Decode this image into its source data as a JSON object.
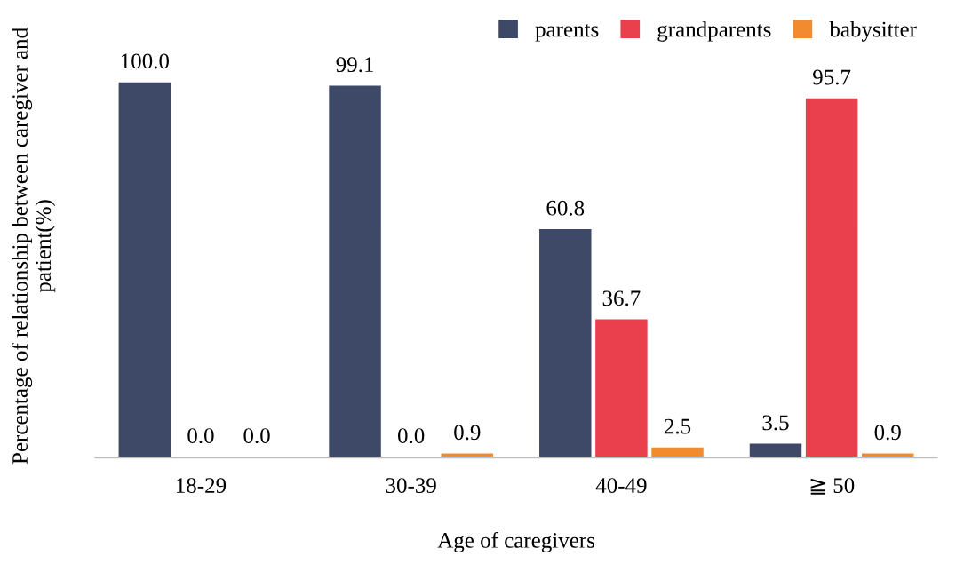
{
  "chart_data": {
    "type": "bar",
    "xlabel": "Age of caregivers",
    "ylabel": "Percentage of relationship between caregiver and patient(%)",
    "categories": [
      "18-29",
      "30-39",
      "40-49",
      "≧ 50"
    ],
    "series": [
      {
        "name": "parents",
        "color": "#3d4966",
        "values": [
          100.0,
          99.1,
          60.8,
          3.5
        ],
        "value_labels": [
          "100.0",
          "99.1",
          "60.8",
          "3.5"
        ]
      },
      {
        "name": "grandparents",
        "color": "#ea3f4c",
        "values": [
          0.0,
          0.0,
          36.7,
          95.7
        ],
        "value_labels": [
          "0.0",
          "0.0",
          "36.7",
          "95.7"
        ]
      },
      {
        "name": "babysitter",
        "color": "#f28b30",
        "values": [
          0.0,
          0.9,
          2.5,
          0.9
        ],
        "value_labels": [
          "0.0",
          "0.9",
          "2.5",
          "0.9"
        ]
      }
    ],
    "legend": "top right",
    "grid": false
  }
}
